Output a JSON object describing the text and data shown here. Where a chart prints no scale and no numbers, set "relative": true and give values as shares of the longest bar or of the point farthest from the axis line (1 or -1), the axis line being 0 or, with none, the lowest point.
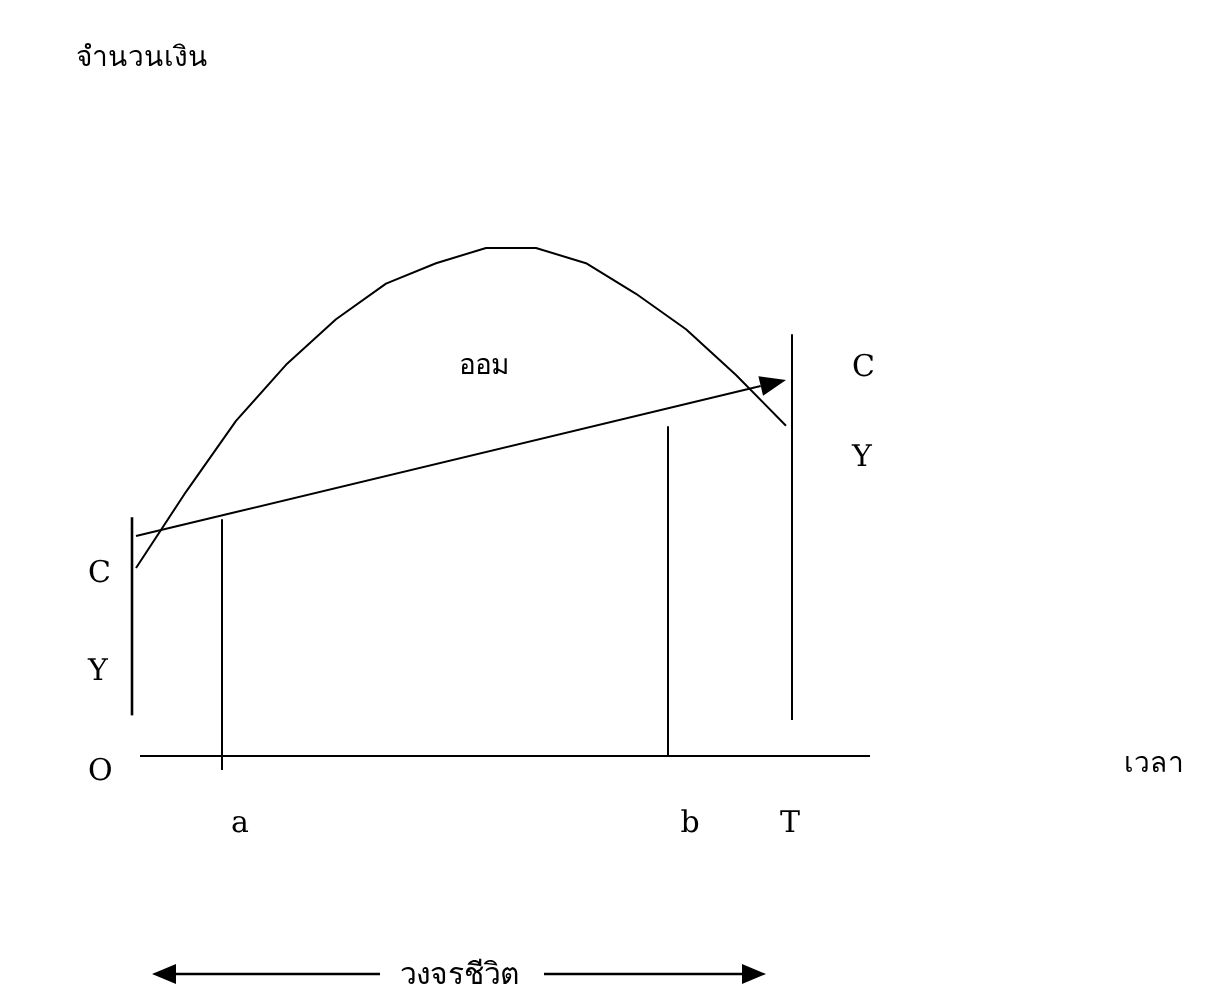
{
  "chart_data": {
    "type": "line",
    "relative": true,
    "categories": [
      null,
      null,
      "a",
      null,
      null,
      null,
      null,
      null,
      null,
      null,
      null,
      "b",
      null,
      "T"
    ],
    "series": [
      {
        "name": "Y",
        "color": "#000000",
        "values": [
          0.37,
          0.52,
          0.66,
          0.77,
          0.86,
          0.93,
          0.97,
          1.0,
          1.0,
          0.97,
          0.91,
          0.84,
          0.75,
          0.65
        ]
      }
    ],
    "ref_lines": [
      {
        "axis": "x",
        "value": "a"
      },
      {
        "axis": "x",
        "value": "b"
      },
      {
        "axis": "x",
        "value": "T"
      }
    ],
    "annotations": [
      "จำนวนเงิน",
      "ออม",
      "C",
      "Y",
      "O",
      "C",
      "เวลา",
      "วงจรชีวิต"
    ]
  }
}
